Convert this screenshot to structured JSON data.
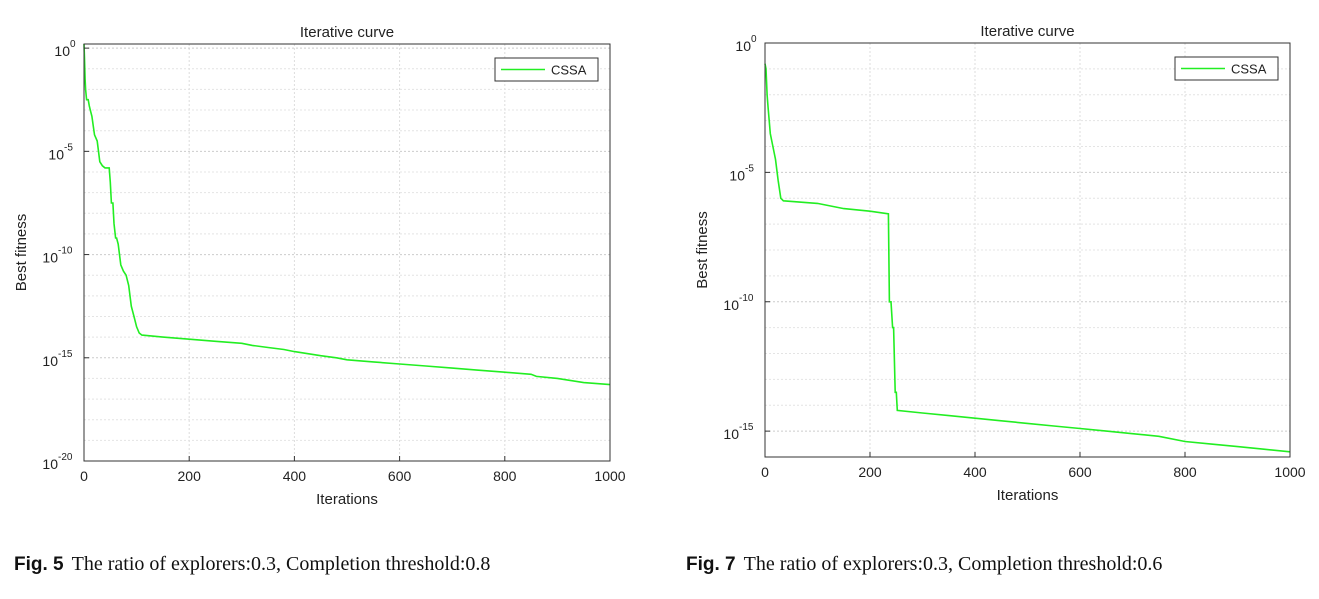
{
  "chart_data": [
    {
      "type": "line",
      "yscale": "log",
      "title": "Iterative curve",
      "xlabel": "Iterations",
      "ylabel": "Best fitness",
      "xlim": [
        0,
        1000
      ],
      "ylim_exp": [
        -20,
        0.2
      ],
      "xticks": [
        0,
        200,
        400,
        600,
        800,
        1000
      ],
      "yticks_exp": [
        -20,
        -15,
        -10,
        -5,
        0
      ],
      "grid": true,
      "legend_position": "top-right",
      "series": [
        {
          "name": "CSSA",
          "color": "#22ee22",
          "x": [
            0,
            1,
            2,
            3,
            5,
            8,
            10,
            12,
            15,
            20,
            25,
            30,
            35,
            40,
            48,
            50,
            52,
            55,
            57,
            60,
            62,
            65,
            70,
            75,
            80,
            85,
            90,
            95,
            100,
            105,
            110,
            150,
            200,
            250,
            300,
            320,
            350,
            380,
            400,
            450,
            480,
            500,
            550,
            600,
            650,
            700,
            750,
            800,
            850,
            860,
            900,
            950,
            1000
          ],
          "y_exp": [
            0.2,
            -0.5,
            -1.5,
            -2,
            -2.5,
            -2.5,
            -2.8,
            -3,
            -3.3,
            -4.2,
            -4.5,
            -5.5,
            -5.7,
            -5.8,
            -5.8,
            -6.5,
            -7.5,
            -7.5,
            -8.5,
            -9.2,
            -9.2,
            -9.5,
            -10.5,
            -10.8,
            -11,
            -11.5,
            -12.5,
            -13,
            -13.5,
            -13.8,
            -13.9,
            -14,
            -14.1,
            -14.2,
            -14.3,
            -14.4,
            -14.5,
            -14.6,
            -14.7,
            -14.9,
            -15,
            -15.1,
            -15.2,
            -15.3,
            -15.4,
            -15.5,
            -15.6,
            -15.7,
            -15.8,
            -15.9,
            -16,
            -16.2,
            -16.3
          ]
        }
      ]
    },
    {
      "type": "line",
      "yscale": "log",
      "title": "Iterative curve",
      "xlabel": "Iterations",
      "ylabel": "Best fitness",
      "xlim": [
        0,
        1000
      ],
      "ylim_exp": [
        -16,
        0
      ],
      "xticks": [
        0,
        200,
        400,
        600,
        800,
        1000
      ],
      "yticks_exp": [
        -15,
        -10,
        -5,
        0
      ],
      "grid": true,
      "legend_position": "top-right",
      "series": [
        {
          "name": "CSSA",
          "color": "#22ee22",
          "x": [
            0,
            2,
            4,
            6,
            8,
            10,
            15,
            20,
            25,
            30,
            35,
            100,
            150,
            200,
            235,
            237,
            240,
            243,
            245,
            248,
            250,
            252,
            300,
            350,
            400,
            450,
            500,
            550,
            600,
            650,
            700,
            750,
            800,
            850,
            900,
            950,
            1000
          ],
          "y_exp": [
            -0.8,
            -1,
            -2,
            -2.5,
            -3,
            -3.5,
            -4,
            -4.5,
            -5.3,
            -6,
            -6.1,
            -6.2,
            -6.4,
            -6.5,
            -6.6,
            -10,
            -10,
            -11,
            -11,
            -13.5,
            -13.5,
            -14.2,
            -14.3,
            -14.4,
            -14.5,
            -14.6,
            -14.7,
            -14.8,
            -14.9,
            -15.0,
            -15.1,
            -15.2,
            -15.4,
            -15.5,
            -15.6,
            -15.7,
            -15.8
          ]
        }
      ]
    }
  ],
  "captions": [
    {
      "fig": "Fig. 5",
      "text": "The ratio of explorers:0.3, Completion threshold:0.8"
    },
    {
      "fig": "Fig. 7",
      "text": "The ratio of explorers:0.3, Completion threshold:0.6"
    }
  ]
}
